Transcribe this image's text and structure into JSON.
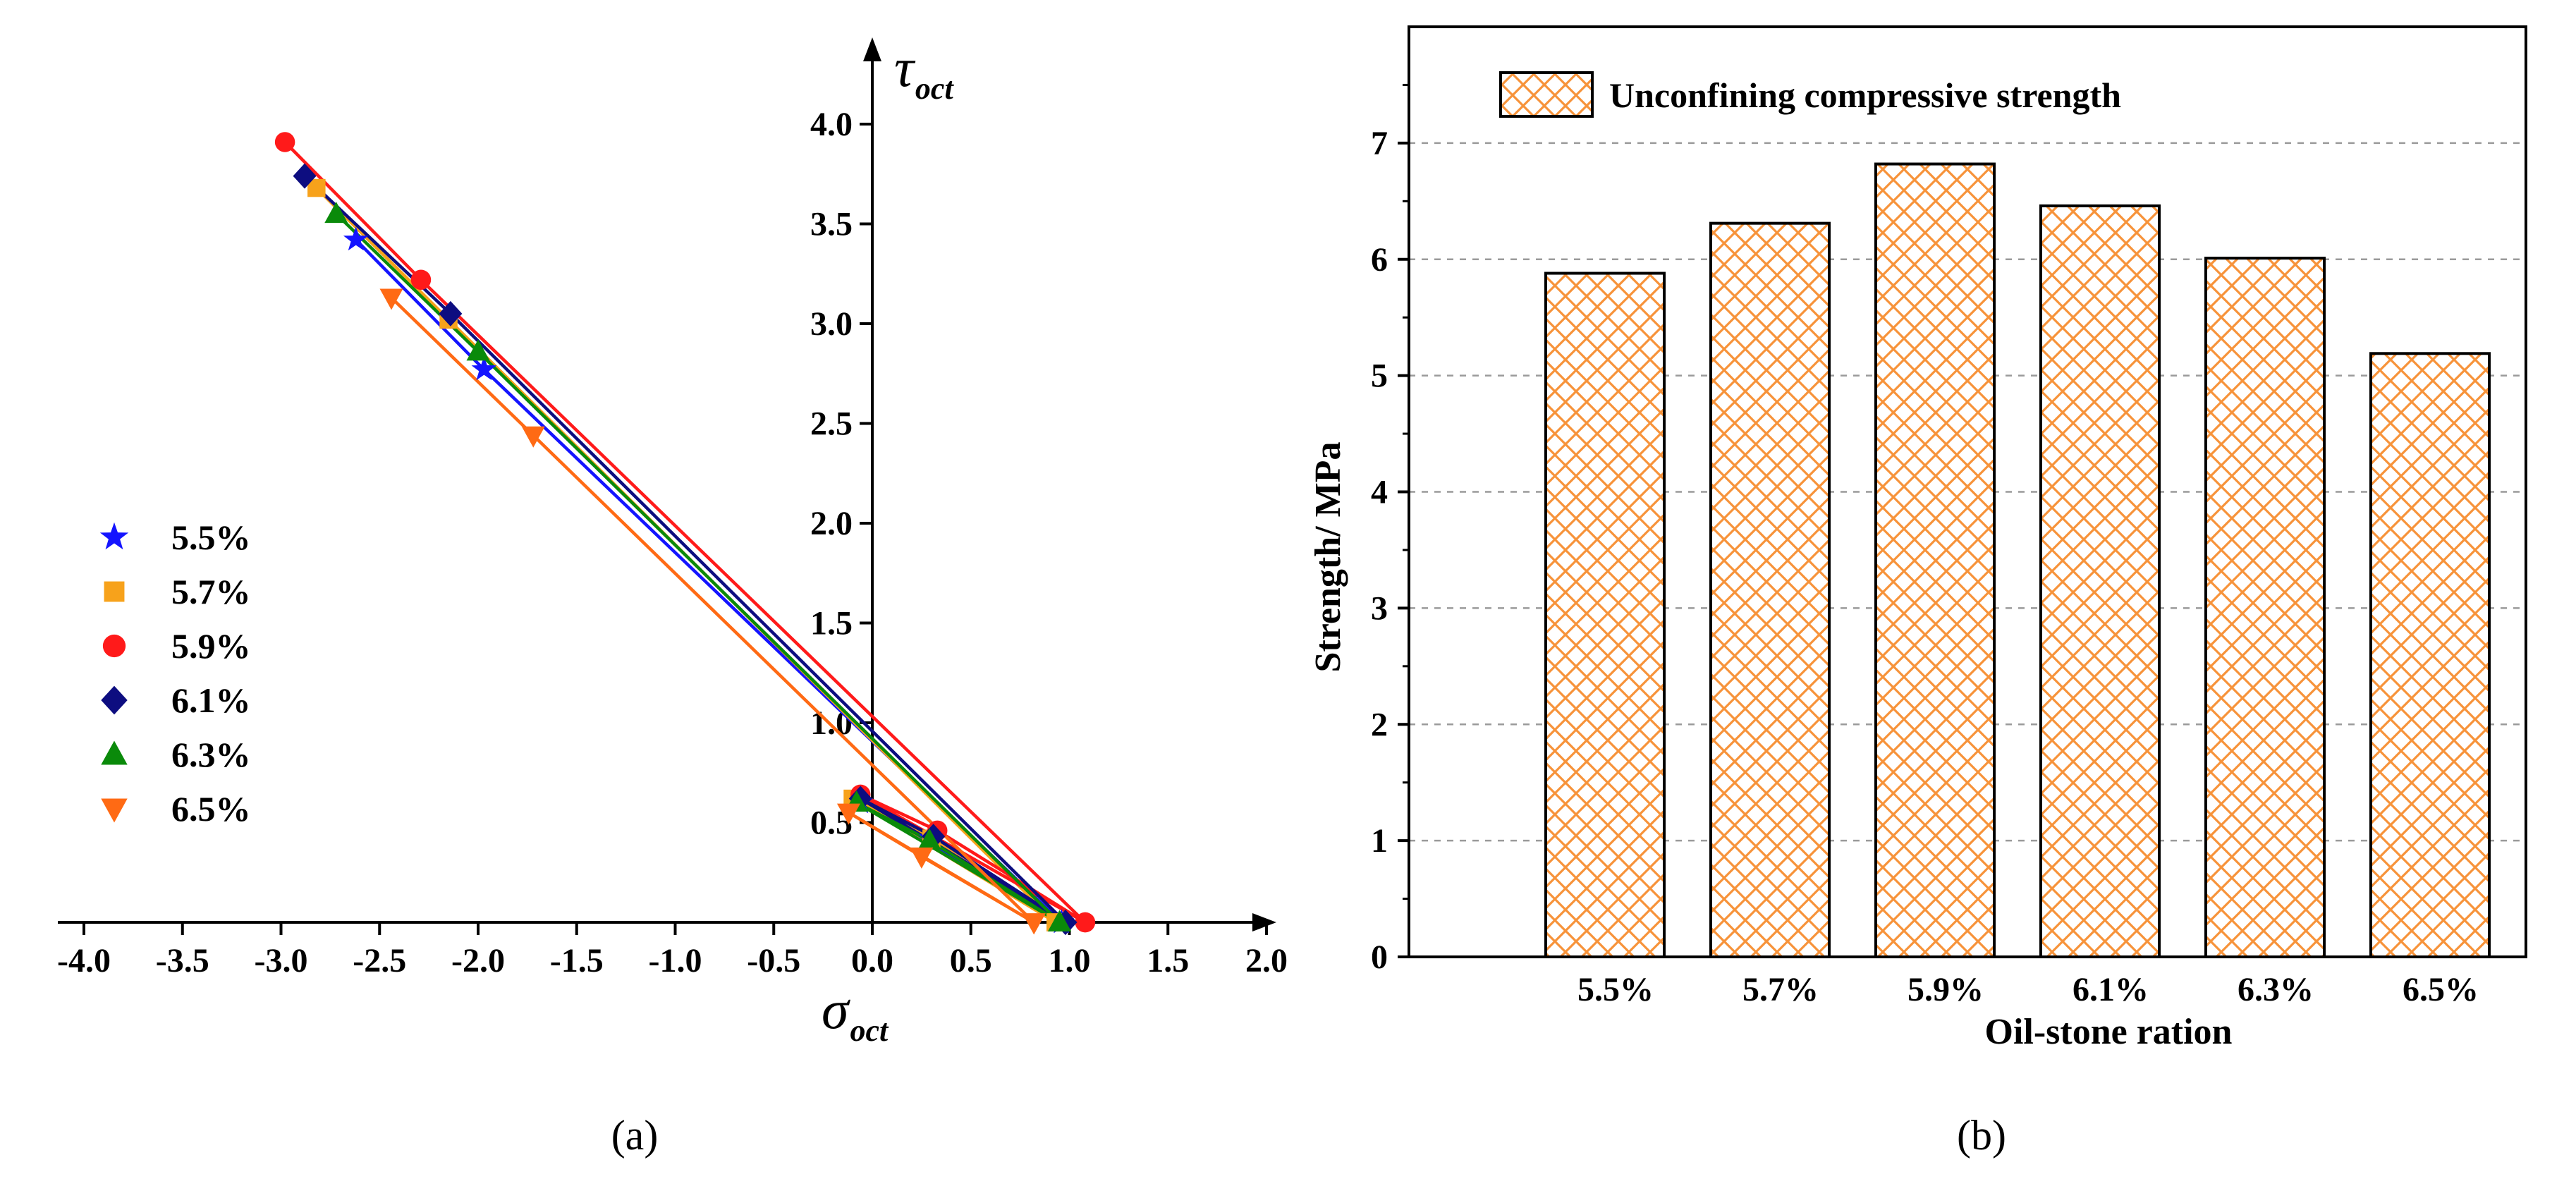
{
  "chart_data": [
    {
      "type": "line",
      "panel_label": "(a)",
      "xlabel": "σ",
      "xlabel_sub": "oct",
      "ylabel": "τ",
      "ylabel_sub": "oct",
      "xlim": [
        -4.0,
        2.0
      ],
      "ylim": [
        0,
        4.0
      ],
      "x_ticks": [
        "-4.0",
        "-3.5",
        "-3.0",
        "-2.5",
        "-2.0",
        "-1.5",
        "-1.0",
        "-0.5",
        "0.0",
        "0.5",
        "1.0",
        "1.5",
        "2.0"
      ],
      "y_ticks": [
        "0.5",
        "1.0",
        "1.5",
        "2.0",
        "2.5",
        "3.0",
        "3.5",
        "4.0"
      ],
      "legend_position": "left",
      "series": [
        {
          "name": "5.5%",
          "color": "#1414ff",
          "marker": "star",
          "x": [
            -2.62,
            -1.97,
            0.96,
            0.3,
            -0.06,
            0.96
          ],
          "y": [
            3.42,
            2.77,
            0.0,
            0.42,
            0.6,
            0.0
          ]
        },
        {
          "name": "5.7%",
          "color": "#f7a21b",
          "marker": "square",
          "x": [
            -2.82,
            -2.15,
            0.93,
            0.3,
            -0.1,
            0.93
          ],
          "y": [
            3.68,
            3.02,
            0.0,
            0.42,
            0.62,
            0.0
          ]
        },
        {
          "name": "5.9%",
          "color": "#ff1a1a",
          "marker": "circle",
          "x": [
            -2.98,
            -2.29,
            1.08,
            0.33,
            -0.06,
            1.08
          ],
          "y": [
            3.91,
            3.22,
            0.0,
            0.46,
            0.64,
            0.0
          ]
        },
        {
          "name": "6.1%",
          "color": "#0d0d80",
          "marker": "diamond",
          "x": [
            -2.88,
            -2.14,
            0.98,
            0.31,
            -0.06,
            0.98
          ],
          "y": [
            3.74,
            3.05,
            0.0,
            0.43,
            0.62,
            0.0
          ]
        },
        {
          "name": "6.3%",
          "color": "#0a8a0a",
          "marker": "triangle-up",
          "x": [
            -2.72,
            -2.0,
            0.95,
            0.29,
            -0.08,
            0.95
          ],
          "y": [
            3.55,
            2.86,
            0.0,
            0.41,
            0.6,
            0.0
          ]
        },
        {
          "name": "6.5%",
          "color": "#ff6a14",
          "marker": "triangle-down",
          "x": [
            -2.44,
            -1.72,
            0.82,
            0.25,
            -0.12,
            0.82
          ],
          "y": [
            3.13,
            2.44,
            0.0,
            0.33,
            0.55,
            0.0
          ]
        }
      ]
    },
    {
      "type": "bar",
      "panel_label": "(b)",
      "categories": [
        "5.5%",
        "5.7%",
        "5.9%",
        "6.1%",
        "6.3%",
        "6.5%"
      ],
      "values": [
        5.88,
        6.31,
        6.82,
        6.46,
        6.01,
        5.19
      ],
      "xlabel": "Oil-stone ration",
      "ylabel": "Strength/ MPa",
      "ylim": [
        0,
        8
      ],
      "y_ticks": [
        "0",
        "1",
        "2",
        "3",
        "4",
        "5",
        "6",
        "7"
      ],
      "grid": true,
      "legend_position": "top-left",
      "series_name": "Unconfining compressive strength",
      "bar_color": "#f7933a",
      "bar_fill": "cross-hatch"
    }
  ]
}
